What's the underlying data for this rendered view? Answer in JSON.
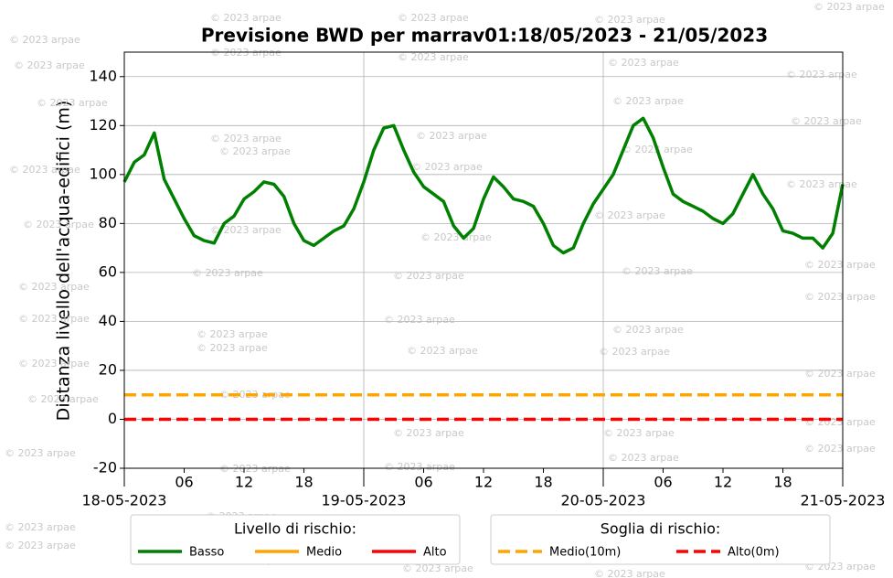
{
  "chart_data": {
    "type": "line",
    "title": "Previsione BWD per marrav01:18/05/2023 - 21/05/2023",
    "ylabel": "Distanza livello dell'acqua-edifici (m)",
    "watermark": "© 2023 arpae",
    "xlim": [
      0,
      72
    ],
    "ylim": [
      -20,
      150
    ],
    "yticks": [
      -20,
      0,
      20,
      40,
      60,
      80,
      100,
      120,
      140
    ],
    "xticks": [
      {
        "value": 0,
        "label": "18-05-2023"
      },
      {
        "value": 24,
        "label": "19-05-2023"
      },
      {
        "value": 48,
        "label": "20-05-2023"
      },
      {
        "value": 72,
        "label": "21-05-2023"
      }
    ],
    "xticks_minor": [
      {
        "value": 6,
        "label": "06"
      },
      {
        "value": 12,
        "label": "12"
      },
      {
        "value": 18,
        "label": "18"
      },
      {
        "value": 30,
        "label": "06"
      },
      {
        "value": 36,
        "label": "12"
      },
      {
        "value": 42,
        "label": "18"
      },
      {
        "value": 54,
        "label": "06"
      },
      {
        "value": 60,
        "label": "12"
      },
      {
        "value": 66,
        "label": "18"
      }
    ],
    "grid": true,
    "x": [
      0,
      1,
      2,
      3,
      4,
      5,
      6,
      7,
      8,
      9,
      10,
      11,
      12,
      13,
      14,
      15,
      16,
      17,
      18,
      19,
      20,
      21,
      22,
      23,
      24,
      25,
      26,
      27,
      28,
      29,
      30,
      31,
      32,
      33,
      34,
      35,
      36,
      37,
      38,
      39,
      40,
      41,
      42,
      43,
      44,
      45,
      46,
      47,
      48,
      49,
      50,
      51,
      52,
      53,
      54,
      55,
      56,
      57,
      58,
      59,
      60,
      61,
      62,
      63,
      64,
      65,
      66,
      67,
      68,
      69,
      70,
      71,
      72
    ],
    "series": [
      {
        "name": "Basso",
        "color": "#008000",
        "values": [
          97,
          105,
          108,
          117,
          98,
          90,
          82,
          75,
          73,
          72,
          80,
          83,
          90,
          93,
          97,
          96,
          91,
          80,
          73,
          71,
          74,
          77,
          79,
          86,
          97,
          110,
          119,
          120,
          110,
          101,
          95,
          92,
          89,
          79,
          74,
          78,
          90,
          99,
          95,
          90,
          89,
          87,
          80,
          71,
          68,
          70,
          80,
          88,
          94,
          100,
          110,
          120,
          123,
          115,
          103,
          92,
          89,
          87,
          85,
          82,
          80,
          84,
          92,
          100,
          92,
          86,
          77,
          76,
          74,
          74,
          70,
          76,
          96
        ]
      }
    ],
    "thresholds": [
      {
        "name": "Medio(10m)",
        "value": 10,
        "color": "#ffa500"
      },
      {
        "name": "Alto(0m)",
        "value": 0,
        "color": "#ff0000"
      }
    ],
    "legends": [
      {
        "title": "Livello di rischio:",
        "entries": [
          {
            "name": "Basso",
            "color": "#008000"
          },
          {
            "name": "Medio",
            "color": "#ffa500"
          },
          {
            "name": "Alto",
            "color": "#ff0000"
          }
        ]
      },
      {
        "title": "Soglia di rischio:",
        "entries": [
          {
            "name": "Medio(10m)",
            "color": "#ffa500"
          },
          {
            "name": "Alto(0m)",
            "color": "#ff0000"
          }
        ]
      }
    ]
  }
}
